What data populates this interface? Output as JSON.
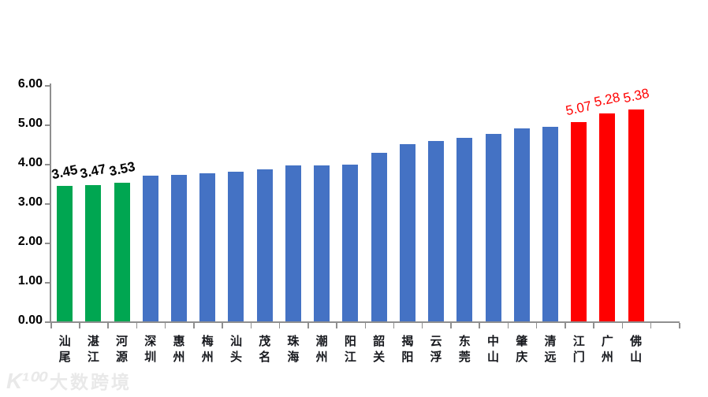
{
  "chart_data": {
    "type": "bar",
    "title": "",
    "xlabel": "",
    "ylabel": "",
    "categories": [
      "汕尾",
      "湛江",
      "河源",
      "深圳",
      "惠州",
      "梅州",
      "汕头",
      "茂名",
      "珠海",
      "潮州",
      "阳江",
      "韶关",
      "揭阳",
      "云浮",
      "东莞",
      "中山",
      "肇庆",
      "清远",
      "江门",
      "广州",
      "佛山"
    ],
    "values": [
      3.45,
      3.47,
      3.53,
      3.7,
      3.72,
      3.77,
      3.81,
      3.87,
      3.96,
      3.97,
      3.99,
      4.29,
      4.5,
      4.59,
      4.66,
      4.76,
      4.9,
      4.94,
      5.07,
      5.28,
      5.38
    ],
    "bar_colors": [
      "#00A651",
      "#00A651",
      "#00A651",
      "#4472C4",
      "#4472C4",
      "#4472C4",
      "#4472C4",
      "#4472C4",
      "#4472C4",
      "#4472C4",
      "#4472C4",
      "#4472C4",
      "#4472C4",
      "#4472C4",
      "#4472C4",
      "#4472C4",
      "#4472C4",
      "#4472C4",
      "#FF0000",
      "#FF0000",
      "#FF0000"
    ],
    "data_labels": [
      {
        "index": 0,
        "text": "3.45",
        "color": "#000000",
        "bold": true
      },
      {
        "index": 1,
        "text": "3.47",
        "color": "#000000",
        "bold": true
      },
      {
        "index": 2,
        "text": "3.53",
        "color": "#000000",
        "bold": true
      },
      {
        "index": 18,
        "text": "5.07",
        "color": "#FF0000",
        "bold": false
      },
      {
        "index": 19,
        "text": "5.28",
        "color": "#FF0000",
        "bold": false
      },
      {
        "index": 20,
        "text": "5.38",
        "color": "#FF0000",
        "bold": false
      }
    ],
    "ylim": [
      0,
      6
    ],
    "ytick_labels": [
      "0.00",
      "1.00",
      "2.00",
      "3.00",
      "4.00",
      "5.00",
      "6.00"
    ],
    "grid": false,
    "legend": "none",
    "trailing_empty_slots": 1,
    "colors": {
      "green_group": "#00A651",
      "blue_group": "#4472C4",
      "red_group": "#FF0000",
      "axis": "#8f8f8f",
      "category_label": "#16181D",
      "ytick_label": "#000000"
    }
  },
  "watermark": {
    "logo": "K¹⁰⁰",
    "text": "大数跨境",
    "color": "#e9e9e9"
  }
}
